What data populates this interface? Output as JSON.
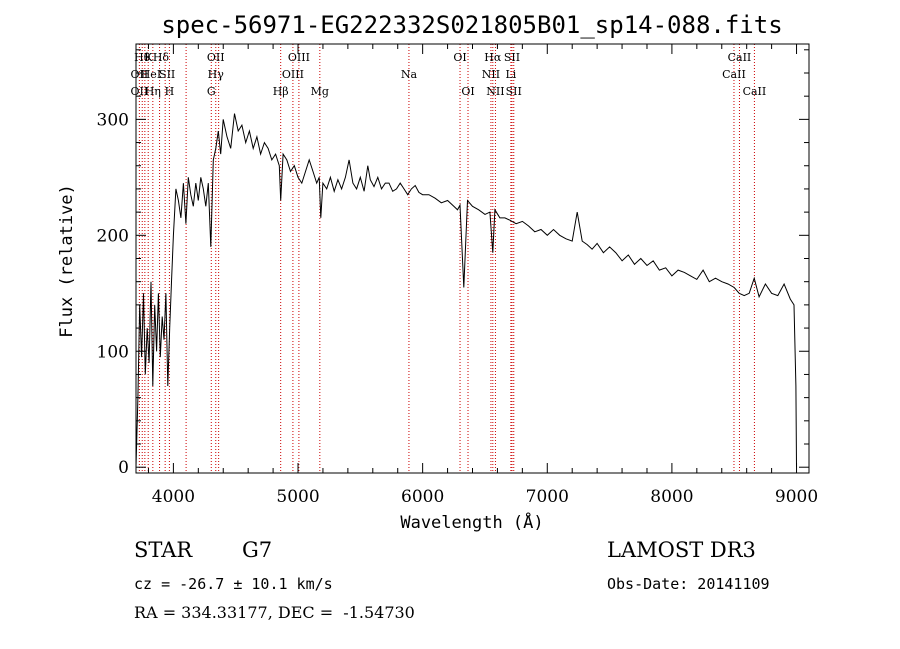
{
  "chart_data": {
    "type": "line",
    "title": "spec-56971-EG222332S021805B01_sp14-088.fits",
    "xlabel": "Wavelength (Å)",
    "ylabel": "Flux (relative)",
    "xlim": [
      3700,
      9100
    ],
    "ylim": [
      -5,
      365
    ],
    "x_ticks": [
      4000,
      5000,
      6000,
      7000,
      8000,
      9000
    ],
    "x_tick_labels": [
      "4000",
      "5000",
      "6000",
      "7000",
      "8000",
      "9000"
    ],
    "y_ticks": [
      0,
      100,
      200,
      300
    ],
    "y_tick_labels": [
      "0",
      "100",
      "200",
      "300"
    ],
    "grid": false,
    "series": [
      {
        "x": [
          3700,
          3715,
          3730,
          3745,
          3760,
          3775,
          3790,
          3805,
          3820,
          3835,
          3850,
          3865,
          3880,
          3895,
          3910,
          3925,
          3940,
          3955,
          3970,
          3985,
          4000,
          4020,
          4040,
          4060,
          4080,
          4100,
          4120,
          4140,
          4160,
          4180,
          4200,
          4220,
          4240,
          4260,
          4280,
          4300,
          4320,
          4340,
          4360,
          4380,
          4400,
          4430,
          4460,
          4490,
          4520,
          4550,
          4580,
          4610,
          4640,
          4670,
          4700,
          4730,
          4760,
          4790,
          4820,
          4850,
          4861,
          4880,
          4910,
          4940,
          4970,
          5000,
          5030,
          5060,
          5090,
          5120,
          5150,
          5170,
          5183,
          5200,
          5230,
          5260,
          5290,
          5320,
          5350,
          5380,
          5410,
          5440,
          5470,
          5500,
          5530,
          5560,
          5580,
          5610,
          5640,
          5670,
          5700,
          5730,
          5760,
          5790,
          5820,
          5850,
          5880,
          5910,
          5940,
          5970,
          6000,
          6050,
          6100,
          6150,
          6200,
          6250,
          6280,
          6300,
          6330,
          6360,
          6400,
          6450,
          6500,
          6540,
          6563,
          6580,
          6620,
          6660,
          6700,
          6750,
          6800,
          6850,
          6900,
          6950,
          7000,
          7050,
          7100,
          7150,
          7200,
          7240,
          7280,
          7320,
          7360,
          7400,
          7450,
          7500,
          7550,
          7600,
          7650,
          7700,
          7750,
          7800,
          7850,
          7900,
          7950,
          8000,
          8050,
          8100,
          8150,
          8200,
          8250,
          8300,
          8350,
          8400,
          8450,
          8500,
          8540,
          8580,
          8620,
          8660,
          8700,
          8750,
          8800,
          8850,
          8900,
          8950,
          8980,
          8995,
          9000
        ],
        "y": [
          0,
          60,
          140,
          95,
          150,
          80,
          120,
          90,
          160,
          70,
          140,
          100,
          150,
          95,
          130,
          110,
          150,
          70,
          120,
          160,
          200,
          240,
          230,
          215,
          245,
          210,
          250,
          235,
          225,
          245,
          230,
          250,
          240,
          225,
          245,
          190,
          265,
          275,
          290,
          270,
          300,
          285,
          275,
          305,
          290,
          295,
          280,
          290,
          275,
          285,
          270,
          280,
          275,
          265,
          270,
          260,
          230,
          270,
          265,
          255,
          260,
          250,
          245,
          255,
          265,
          255,
          245,
          250,
          215,
          245,
          240,
          250,
          238,
          248,
          240,
          250,
          265,
          245,
          240,
          250,
          238,
          260,
          248,
          242,
          250,
          240,
          245,
          245,
          238,
          240,
          245,
          240,
          235,
          240,
          243,
          237,
          235,
          235,
          232,
          228,
          230,
          225,
          222,
          226,
          155,
          230,
          225,
          222,
          218,
          220,
          185,
          222,
          215,
          215,
          213,
          210,
          212,
          208,
          203,
          205,
          200,
          205,
          200,
          197,
          195,
          220,
          195,
          192,
          188,
          193,
          185,
          190,
          185,
          178,
          183,
          175,
          180,
          174,
          178,
          170,
          172,
          165,
          170,
          168,
          165,
          162,
          170,
          160,
          163,
          160,
          158,
          155,
          150,
          148,
          150,
          163,
          147,
          158,
          150,
          148,
          158,
          145,
          140,
          70,
          0
        ]
      }
    ],
    "line_markers": [
      {
        "wavelength": 3750,
        "label": "Hθ",
        "row": 1
      },
      {
        "wavelength": 3800,
        "label": "K",
        "row": 1
      },
      {
        "wavelength": 3900,
        "label": "Hδ",
        "row": 1
      },
      {
        "wavelength": 4340,
        "label": "OII",
        "row": 1
      },
      {
        "wavelength": 5007,
        "label": "OIII",
        "row": 1
      },
      {
        "wavelength": 6300,
        "label": "OI",
        "row": 1
      },
      {
        "wavelength": 6563,
        "label": "Hα",
        "row": 1
      },
      {
        "wavelength": 6717,
        "label": "SII",
        "row": 1
      },
      {
        "wavelength": 8542,
        "label": "CaII",
        "row": 1
      },
      {
        "wavelength": 3727,
        "label": "OII",
        "row": 2
      },
      {
        "wavelength": 3820,
        "label": "HeI",
        "row": 2
      },
      {
        "wavelength": 3950,
        "label": "SII",
        "row": 2
      },
      {
        "wavelength": 4340,
        "label": "Hγ",
        "row": 2
      },
      {
        "wavelength": 4959,
        "label": "OIII",
        "row": 2
      },
      {
        "wavelength": 5890,
        "label": "Na",
        "row": 2
      },
      {
        "wavelength": 6548,
        "label": "NII",
        "row": 2
      },
      {
        "wavelength": 6708,
        "label": "Li",
        "row": 2
      },
      {
        "wavelength": 8498,
        "label": "CaII",
        "row": 2
      },
      {
        "wavelength": 3727,
        "label": "OII",
        "row": 3
      },
      {
        "wavelength": 3835,
        "label": "Hη",
        "row": 3
      },
      {
        "wavelength": 3968,
        "label": "H",
        "row": 3
      },
      {
        "wavelength": 4304,
        "label": "G",
        "row": 3
      },
      {
        "wavelength": 4861,
        "label": "Hβ",
        "row": 3
      },
      {
        "wavelength": 5175,
        "label": "Mg",
        "row": 3
      },
      {
        "wavelength": 6364,
        "label": "OI",
        "row": 3
      },
      {
        "wavelength": 6584,
        "label": "NII",
        "row": 3
      },
      {
        "wavelength": 6731,
        "label": "SII",
        "row": 3
      },
      {
        "wavelength": 8662,
        "label": "CaII",
        "row": 3
      }
    ],
    "marker_wavelengths": [
      3727,
      3750,
      3771,
      3798,
      3835,
      3889,
      3934,
      3968,
      4102,
      4304,
      4340,
      4363,
      4861,
      4959,
      5007,
      5175,
      5890,
      6300,
      6364,
      6548,
      6563,
      6584,
      6708,
      6717,
      6731,
      8498,
      8542,
      8662
    ],
    "marker_color": "#cc0000"
  },
  "info": {
    "object_class": "STAR",
    "subclass": "G7",
    "survey": "LAMOST DR3",
    "redshift_text": "cz = -26.7 ± 10.1 km/s",
    "obs_date": "Obs-Date: 20141109",
    "coords": "RA = 334.33177, DEC =  -1.54730"
  }
}
